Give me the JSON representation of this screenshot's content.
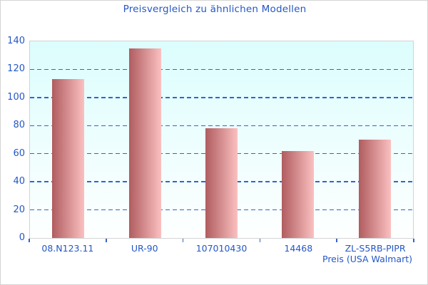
{
  "chart_data": {
    "type": "bar",
    "title": "Preisvergleich zu ähnlichen Modellen",
    "categories": [
      "08.N123.11",
      "UR-90",
      "107010430",
      "14468",
      "ZL-S5RB-PIPR"
    ],
    "values": [
      113,
      135,
      78,
      62,
      70
    ],
    "xlabel": "Preis (USA Walmart)",
    "ylabel": "",
    "ylim": [
      0,
      140
    ],
    "ytick_step": 20,
    "grid": true,
    "grid_style": "dashed",
    "legend": false
  },
  "colors": {
    "text_blue": "#2457c5",
    "gridline_blue": "#3264cd",
    "tick_blue": "#3264cd",
    "bar_gradient_left": "#b05c5f",
    "bar_gradient_right": "#fbc0c0",
    "plot_bg_top": "#dcfdfd",
    "plot_bg_bottom": "#feffff",
    "plot_border": "#d3d3d3",
    "frame_border": "#d4d4d4",
    "page_bg": "#ffffff"
  }
}
